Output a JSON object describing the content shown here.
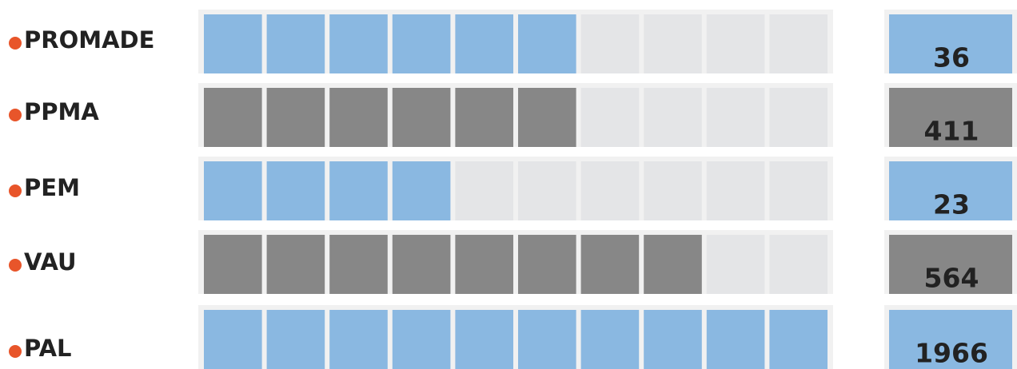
{
  "chart_data": {
    "type": "waffle-rows",
    "cells": 10,
    "categories": [
      "PROMADE",
      "PPMA",
      "PEM",
      "VAU",
      "PAL"
    ],
    "filled": [
      6,
      6,
      4,
      8,
      10
    ],
    "totals": [
      36,
      411,
      23,
      564,
      1966
    ],
    "colors": [
      "#8ab8e1",
      "#878787",
      "#8ab8e1",
      "#878787",
      "#8ab8e1"
    ],
    "empty_color": "#e4e5e7",
    "bullet_color": "#e8552a"
  }
}
